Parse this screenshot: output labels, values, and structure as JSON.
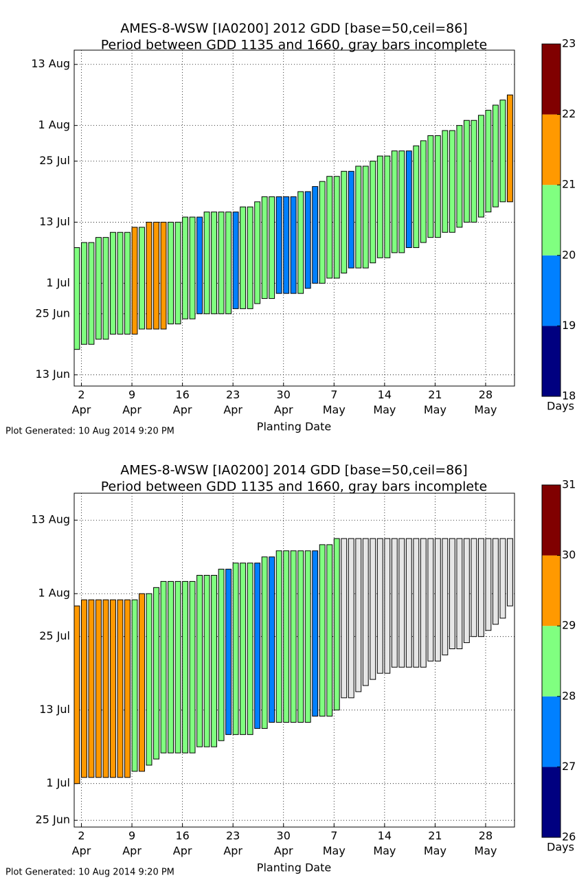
{
  "chart_data": [
    {
      "type": "floating_bar",
      "title": "AMES-8-WSW [IA0200] 2012 GDD [base=50,ceil=86]",
      "subtitle": "Period between GDD 1135 and 1660, gray bars incomplete",
      "xlabel": "Planting Date",
      "footnote": "Plot Generated: 10 Aug 2014 9:20 PM",
      "x": [
        92,
        93,
        94,
        95,
        96,
        97,
        98,
        99,
        100,
        101,
        102,
        103,
        104,
        105,
        106,
        107,
        108,
        109,
        110,
        111,
        112,
        113,
        114,
        115,
        116,
        117,
        118,
        119,
        120,
        121,
        122,
        123,
        124,
        125,
        126,
        127,
        128,
        129,
        130,
        131,
        132,
        133,
        134,
        135,
        136,
        137,
        138,
        139,
        140,
        141,
        142,
        143,
        144,
        145,
        146,
        147,
        148,
        149,
        150,
        151,
        152
      ],
      "start": [
        170,
        171,
        171,
        172,
        172,
        173,
        173,
        173,
        173,
        174,
        174,
        174,
        174,
        175,
        175,
        176,
        176,
        177,
        177,
        177,
        177,
        177,
        178,
        178,
        178,
        179,
        180,
        180,
        181,
        181,
        181,
        181,
        182,
        183,
        183,
        184,
        184,
        185,
        186,
        186,
        186,
        187,
        188,
        188,
        189,
        189,
        190,
        190,
        191,
        192,
        192,
        193,
        193,
        194,
        195,
        195,
        196,
        197,
        198,
        199,
        199
      ],
      "end": [
        190,
        191,
        191,
        192,
        192,
        193,
        193,
        193,
        194,
        194,
        195,
        195,
        195,
        195,
        195,
        196,
        196,
        196,
        197,
        197,
        197,
        197,
        197,
        198,
        198,
        199,
        200,
        200,
        200,
        200,
        200,
        201,
        201,
        202,
        203,
        204,
        204,
        205,
        205,
        206,
        206,
        207,
        208,
        208,
        209,
        209,
        209,
        210,
        211,
        212,
        212,
        213,
        213,
        214,
        215,
        215,
        216,
        217,
        218,
        219,
        220
      ],
      "incomplete": [
        false,
        false,
        false,
        false,
        false,
        false,
        false,
        false,
        false,
        false,
        false,
        false,
        false,
        false,
        false,
        false,
        false,
        false,
        false,
        false,
        false,
        false,
        false,
        false,
        false,
        false,
        false,
        false,
        false,
        false,
        false,
        false,
        false,
        false,
        false,
        false,
        false,
        false,
        false,
        false,
        false,
        false,
        false,
        false,
        false,
        false,
        false,
        false,
        false,
        false,
        false,
        false,
        false,
        false,
        false,
        false,
        false,
        false,
        false,
        false,
        false
      ],
      "incomplete_color": "#e6e6e6",
      "xlim": [
        92,
        153
      ],
      "xticks": [
        {
          "value": 93,
          "label": "2 Apr"
        },
        {
          "value": 100,
          "label": "9 Apr"
        },
        {
          "value": 107,
          "label": "16 Apr"
        },
        {
          "value": 114,
          "label": "23 Apr"
        },
        {
          "value": 121,
          "label": "30 Apr"
        },
        {
          "value": 128,
          "label": "7 May"
        },
        {
          "value": 135,
          "label": "14 May"
        },
        {
          "value": 142,
          "label": "21 May"
        },
        {
          "value": 149,
          "label": "28 May"
        }
      ],
      "ylim": [
        162.8,
        228.8
      ],
      "yticks": [
        {
          "value": 165,
          "label": "13 Jun"
        },
        {
          "value": 177,
          "label": "25 Jun"
        },
        {
          "value": 183,
          "label": "1 Jul"
        },
        {
          "value": 195,
          "label": "13 Jul"
        },
        {
          "value": 207,
          "label": "25 Jul"
        },
        {
          "value": 214,
          "label": "1 Aug"
        },
        {
          "value": 226,
          "label": "13 Aug"
        }
      ],
      "grid": true,
      "colorbar": {
        "label": "Days",
        "bounds": [
          18,
          19,
          20,
          21,
          22,
          23
        ],
        "colors": [
          "#000080",
          "#0080ff",
          "#80ff80",
          "#ff9900",
          "#800000"
        ]
      }
    },
    {
      "type": "floating_bar",
      "title": "AMES-8-WSW [IA0200] 2014 GDD [base=50,ceil=86]",
      "subtitle": "Period between GDD 1135 and 1660, gray bars incomplete",
      "xlabel": "Planting Date",
      "footnote": "Plot Generated: 10 Aug 2014 9:20 PM",
      "x": [
        91,
        92,
        93,
        94,
        95,
        96,
        97,
        98,
        99,
        100,
        101,
        102,
        103,
        104,
        105,
        106,
        107,
        108,
        109,
        110,
        111,
        112,
        113,
        114,
        115,
        116,
        117,
        118,
        119,
        120,
        121,
        122,
        123,
        124,
        125,
        126,
        127,
        128,
        129,
        130,
        131,
        132,
        133,
        134,
        135,
        136,
        137,
        138,
        139,
        140,
        141,
        142,
        143,
        144,
        145,
        146,
        147,
        148,
        149,
        150,
        151
      ],
      "start": [
        182,
        183,
        183,
        183,
        183,
        183,
        183,
        183,
        184,
        184,
        185,
        186,
        187,
        187,
        187,
        187,
        187,
        188,
        188,
        188,
        189,
        190,
        190,
        190,
        190,
        191,
        191,
        192,
        192,
        192,
        192,
        192,
        192,
        193,
        193,
        193,
        194,
        196,
        196,
        197,
        198,
        199,
        200,
        200,
        201,
        201,
        201,
        201,
        201,
        202,
        202,
        203,
        204,
        204,
        205,
        206,
        206,
        207,
        208,
        209,
        211
      ],
      "end": [
        211,
        212,
        212,
        212,
        212,
        212,
        212,
        212,
        212,
        213,
        213,
        214,
        215,
        215,
        215,
        215,
        215,
        216,
        216,
        216,
        217,
        217,
        218,
        218,
        218,
        218,
        219,
        219,
        220,
        220,
        220,
        220,
        220,
        220,
        221,
        221,
        222,
        222,
        222,
        222,
        222,
        222,
        222,
        222,
        222,
        222,
        222,
        222,
        222,
        222,
        222,
        222,
        222,
        222,
        222,
        222,
        222,
        222,
        222,
        222,
        222
      ],
      "incomplete": [
        false,
        false,
        false,
        false,
        false,
        false,
        false,
        false,
        false,
        false,
        false,
        false,
        false,
        false,
        false,
        false,
        false,
        false,
        false,
        false,
        false,
        false,
        false,
        false,
        false,
        false,
        false,
        false,
        false,
        false,
        false,
        false,
        false,
        false,
        false,
        false,
        false,
        true,
        true,
        true,
        true,
        true,
        true,
        true,
        true,
        true,
        true,
        true,
        true,
        true,
        true,
        true,
        true,
        true,
        true,
        true,
        true,
        true,
        true,
        true,
        true
      ],
      "incomplete_color": "#e6e6e6",
      "xlim": [
        91,
        152
      ],
      "xticks": [
        {
          "value": 92,
          "label": "2 Apr"
        },
        {
          "value": 99,
          "label": "9 Apr"
        },
        {
          "value": 106,
          "label": "16 Apr"
        },
        {
          "value": 113,
          "label": "23 Apr"
        },
        {
          "value": 120,
          "label": "30 Apr"
        },
        {
          "value": 127,
          "label": "7 May"
        },
        {
          "value": 134,
          "label": "14 May"
        },
        {
          "value": 141,
          "label": "21 May"
        },
        {
          "value": 148,
          "label": "28 May"
        }
      ],
      "ylim": [
        174.9,
        229.4
      ],
      "yticks": [
        {
          "value": 176,
          "label": "25 Jun"
        },
        {
          "value": 182,
          "label": "1 Jul"
        },
        {
          "value": 194,
          "label": "13 Jul"
        },
        {
          "value": 206,
          "label": "25 Jul"
        },
        {
          "value": 213,
          "label": "1 Aug"
        },
        {
          "value": 225,
          "label": "13 Aug"
        }
      ],
      "grid": true,
      "colorbar": {
        "label": "Days",
        "bounds": [
          26,
          27,
          28,
          29,
          30,
          31
        ],
        "colors": [
          "#000080",
          "#0080ff",
          "#80ff80",
          "#ff9900",
          "#800000"
        ]
      }
    }
  ]
}
